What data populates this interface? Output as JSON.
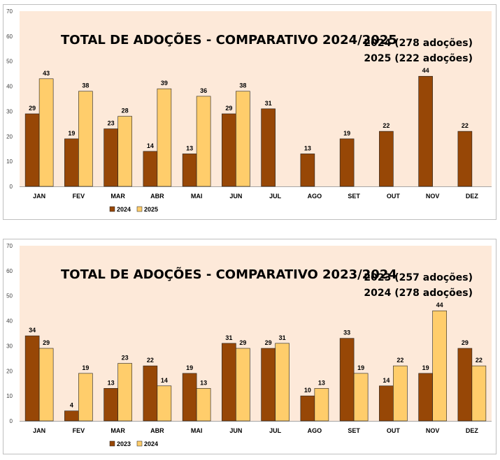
{
  "chart_data": [
    {
      "type": "bar",
      "title": "TOTAL DE ADOÇÕES - COMPARATIVO 2024/2025",
      "summary": [
        "2024 (278 adoções)",
        "2025 (222 adoções)"
      ],
      "categories": [
        "JAN",
        "FEV",
        "MAR",
        "ABR",
        "MAI",
        "JUN",
        "JUL",
        "AGO",
        "SET",
        "OUT",
        "NOV",
        "DEZ"
      ],
      "series": [
        {
          "name": "2024",
          "color": "#974706",
          "values": [
            29,
            19,
            23,
            14,
            13,
            29,
            31,
            13,
            19,
            22,
            44,
            22
          ]
        },
        {
          "name": "2025",
          "color": "#FFCD6B",
          "values": [
            43,
            38,
            28,
            39,
            36,
            38,
            null,
            null,
            null,
            null,
            null,
            null
          ]
        }
      ],
      "ylim": [
        0,
        70
      ],
      "yticks": [
        0,
        10,
        20,
        30,
        40,
        50,
        60,
        70
      ],
      "plot_background": "#FDE9D9",
      "legend_position": "bottom-left"
    },
    {
      "type": "bar",
      "title": "TOTAL DE ADOÇÕES - COMPARATIVO 2023/2024",
      "summary": [
        "2023 (257 adoções)",
        "2024 (278 adoções)"
      ],
      "categories": [
        "JAN",
        "FEV",
        "MAR",
        "ABR",
        "MAI",
        "JUN",
        "JUL",
        "AGO",
        "SET",
        "OUT",
        "NOV",
        "DEZ"
      ],
      "series": [
        {
          "name": "2023",
          "color": "#974706",
          "values": [
            34,
            4,
            13,
            22,
            19,
            31,
            29,
            10,
            33,
            14,
            19,
            29
          ]
        },
        {
          "name": "2024",
          "color": "#FFCD6B",
          "values": [
            29,
            19,
            23,
            14,
            13,
            29,
            31,
            13,
            19,
            22,
            44,
            22
          ]
        }
      ],
      "ylim": [
        0,
        70
      ],
      "yticks": [
        0,
        10,
        20,
        30,
        40,
        50,
        60,
        70
      ],
      "plot_background": "#FDE9D9",
      "legend_position": "bottom-left"
    }
  ]
}
